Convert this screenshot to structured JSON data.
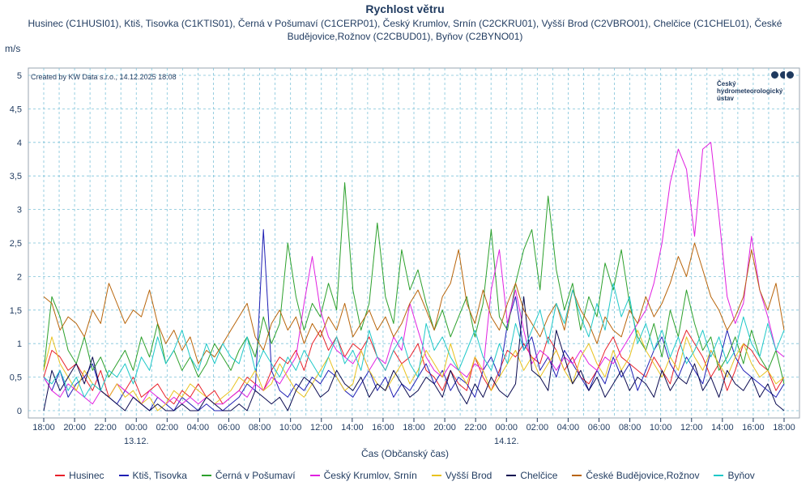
{
  "chart_data": {
    "type": "line",
    "title": "Rychlost větru",
    "subtitle": "Husinec (C1HUSI01), Ktiš, Tisovka (C1KTIS01), Černá v Pošumaví (C1CERP01), Český Krumlov, Srnín (C2CKRU01), Vyšší Brod (C2VBRO01), Chelčice (C1CHEL01), České Budějovice,Rožnov (C2CBUD01), Byňov (C2BYNO01)",
    "ylabel": "m/s",
    "xlabel": "Čas (Občanský čas)",
    "ylim": [
      0,
      5
    ],
    "yticks": [
      "0",
      "0,5",
      "1",
      "1,5",
      "2",
      "2,5",
      "3",
      "3,5",
      "4",
      "4,5",
      "5"
    ],
    "xticks": [
      "18:00",
      "20:00",
      "22:00",
      "00:00",
      "02:00",
      "04:00",
      "06:00",
      "08:00",
      "10:00",
      "12:00",
      "14:00",
      "16:00",
      "18:00",
      "20:00",
      "22:00",
      "00:00",
      "02:00",
      "04:00",
      "06:00",
      "08:00",
      "10:00",
      "12:00",
      "14:00",
      "16:00",
      "18:00"
    ],
    "date_labels": [
      {
        "tick": "00:00",
        "text": "13.12."
      },
      {
        "tick": "00:00",
        "second": true,
        "text": "14.12."
      }
    ],
    "grid": true,
    "legend_position": "bottom",
    "credit": "Created by KW Data s.r.o., 14.12.2025 18:08",
    "series": [
      {
        "name": "Husinec",
        "color": "#e8202a",
        "values": [
          0.5,
          0.9,
          0.8,
          0.6,
          0.7,
          0.5,
          0.3,
          0.6,
          0.2,
          0.4,
          0.3,
          0.5,
          0.2,
          0.3,
          0.4,
          0.2,
          0.1,
          0.3,
          0.2,
          0.4,
          0.2,
          0.3,
          0.1,
          0.2,
          0.3,
          0.5,
          0.4,
          0.3,
          0.6,
          0.8,
          0.7,
          0.9,
          0.6,
          1.0,
          1.2,
          0.9,
          1.1,
          0.8,
          1.0,
          0.9,
          1.1,
          0.8,
          0.6,
          0.9,
          0.7,
          0.8,
          1.0,
          0.6,
          0.5,
          0.3,
          0.6,
          0.4,
          0.3,
          0.8,
          0.5,
          0.3,
          0.6,
          0.9,
          0.8,
          1.0,
          0.8,
          0.7,
          1.1,
          0.9,
          0.6,
          0.8,
          0.5,
          0.4,
          0.6,
          0.9,
          1.1,
          0.8,
          0.7,
          0.6,
          0.5,
          0.8,
          0.6,
          0.4,
          0.9,
          1.2,
          1.0,
          0.8,
          0.5,
          0.7,
          0.3,
          0.6,
          1.0,
          0.9,
          0.7,
          0.6,
          0.3,
          0.5
        ]
      },
      {
        "name": "Ktiš, Tisovka",
        "color": "#1f1fb4",
        "values": [
          0.5,
          0.3,
          0.6,
          0.2,
          0.4,
          0.5,
          0.7,
          0.3,
          0.2,
          0.1,
          0.3,
          0.2,
          0.1,
          0.0,
          0.2,
          0.1,
          0.0,
          0.2,
          0.1,
          0.0,
          0.1,
          0.0,
          0.0,
          0.1,
          0.2,
          0.4,
          0.3,
          2.7,
          0.6,
          0.3,
          0.2,
          0.4,
          0.3,
          0.5,
          0.4,
          0.6,
          0.5,
          0.3,
          0.2,
          0.4,
          0.6,
          0.3,
          0.5,
          0.2,
          0.4,
          0.3,
          0.5,
          0.7,
          0.4,
          0.6,
          0.3,
          0.5,
          0.4,
          0.2,
          0.6,
          0.8,
          0.5,
          1.3,
          1.7,
          0.9,
          1.1,
          0.6,
          0.8,
          0.5,
          0.9,
          0.7,
          0.5,
          0.3,
          0.6,
          0.4,
          0.8,
          0.5,
          0.7,
          0.3,
          0.6,
          0.9,
          1.1,
          0.7,
          0.5,
          0.8,
          0.6,
          0.4,
          0.9,
          0.7,
          1.2,
          0.8,
          0.6,
          0.5,
          0.4,
          0.3,
          0.2,
          0.4
        ]
      },
      {
        "name": "Černá v Pošumaví",
        "color": "#2ca02c",
        "values": [
          0.6,
          1.7,
          1.4,
          0.9,
          0.7,
          1.1,
          0.6,
          0.8,
          0.5,
          0.7,
          0.9,
          0.6,
          1.1,
          0.8,
          1.3,
          0.7,
          0.9,
          0.6,
          0.8,
          0.5,
          0.7,
          1.0,
          0.8,
          0.6,
          0.9,
          1.1,
          0.8,
          1.4,
          1.0,
          1.3,
          2.5,
          1.7,
          1.2,
          1.6,
          1.4,
          1.9,
          1.5,
          3.4,
          1.8,
          1.2,
          1.6,
          2.8,
          1.7,
          1.3,
          2.4,
          1.8,
          2.1,
          1.6,
          1.2,
          1.5,
          1.1,
          1.4,
          1.7,
          1.1,
          1.6,
          2.7,
          1.4,
          1.2,
          1.9,
          2.4,
          2.7,
          1.8,
          3.2,
          2.1,
          1.5,
          1.9,
          1.2,
          1.7,
          1.4,
          2.2,
          1.8,
          2.4,
          1.6,
          1.1,
          0.9,
          1.3,
          0.8,
          1.5,
          1.1,
          1.8,
          1.3,
          0.9,
          1.1,
          0.6,
          0.8,
          1.1,
          0.7,
          1.2,
          0.8,
          0.6,
          0.9,
          0.4
        ]
      },
      {
        "name": "Český Krumlov, Srnín",
        "color": "#e020e0",
        "values": [
          0.5,
          0.3,
          0.2,
          0.4,
          0.3,
          0.2,
          0.1,
          0.3,
          0.2,
          0.4,
          0.3,
          0.2,
          0.1,
          0.3,
          0.2,
          0.1,
          0.2,
          0.1,
          0.2,
          0.1,
          0.2,
          0.1,
          0.1,
          0.2,
          0.3,
          0.2,
          0.4,
          0.3,
          0.5,
          0.4,
          0.6,
          0.8,
          1.6,
          2.3,
          1.5,
          1.1,
          0.9,
          0.8,
          0.7,
          0.9,
          0.6,
          0.8,
          0.7,
          1.1,
          0.9,
          1.6,
          1.2,
          0.8,
          0.6,
          0.5,
          0.7,
          0.6,
          0.5,
          0.7,
          0.6,
          1.8,
          2.4,
          1.3,
          1.8,
          1.2,
          0.7,
          0.9,
          0.8,
          0.6,
          0.8,
          0.7,
          0.9,
          0.7,
          0.6,
          0.8,
          0.7,
          0.9,
          1.1,
          1.3,
          1.5,
          1.9,
          2.5,
          3.4,
          3.9,
          3.6,
          2.6,
          3.9,
          4.0,
          2.9,
          1.7,
          1.3,
          1.6,
          2.6,
          1.8,
          1.4,
          0.9,
          0.8
        ]
      },
      {
        "name": "Vyšší Brod",
        "color": "#e8c21e",
        "values": [
          0.6,
          1.1,
          0.7,
          0.5,
          0.3,
          0.6,
          0.4,
          0.3,
          0.2,
          0.4,
          0.2,
          0.3,
          0.1,
          0.2,
          0.0,
          0.1,
          0.3,
          0.2,
          0.4,
          0.3,
          0.2,
          0.1,
          0.2,
          0.3,
          0.5,
          0.4,
          0.6,
          0.3,
          0.4,
          0.7,
          0.5,
          0.3,
          0.2,
          0.4,
          0.6,
          0.8,
          0.5,
          0.3,
          0.4,
          0.9,
          0.6,
          0.4,
          0.3,
          0.5,
          0.7,
          0.4,
          0.6,
          0.9,
          0.7,
          0.5,
          1.0,
          0.6,
          0.4,
          0.8,
          0.6,
          0.3,
          0.5,
          0.7,
          0.9,
          0.6,
          0.8,
          0.5,
          0.7,
          0.9,
          0.6,
          0.4,
          0.8,
          1.0,
          0.7,
          0.5,
          0.9,
          0.6,
          0.8,
          1.2,
          0.9,
          0.7,
          0.5,
          0.8,
          0.6,
          1.1,
          0.8,
          0.6,
          0.9,
          0.7,
          0.5,
          0.8,
          1.0,
          0.7,
          0.5,
          0.6,
          0.4,
          0.5
        ]
      },
      {
        "name": "Chelčice",
        "color": "#0a0a50",
        "values": [
          0.0,
          0.6,
          0.3,
          0.5,
          0.7,
          0.4,
          0.8,
          0.3,
          0.2,
          0.1,
          0.0,
          0.2,
          0.1,
          0.0,
          0.1,
          0.0,
          0.0,
          0.1,
          0.0,
          0.0,
          0.2,
          0.1,
          0.0,
          0.0,
          0.1,
          0.0,
          0.3,
          0.2,
          0.1,
          0.2,
          0.0,
          0.3,
          0.5,
          0.4,
          0.2,
          0.3,
          0.6,
          0.4,
          0.3,
          0.5,
          0.2,
          0.4,
          0.3,
          0.6,
          0.4,
          0.2,
          0.3,
          0.5,
          0.4,
          0.2,
          0.6,
          0.3,
          0.1,
          0.4,
          0.2,
          0.5,
          0.3,
          0.2,
          0.4,
          1.7,
          0.6,
          0.5,
          0.3,
          1.2,
          0.8,
          0.4,
          0.6,
          0.3,
          0.5,
          0.2,
          0.4,
          0.6,
          0.3,
          0.5,
          0.4,
          0.2,
          0.6,
          0.3,
          0.5,
          0.4,
          0.7,
          0.3,
          0.5,
          0.2,
          0.6,
          0.4,
          0.3,
          0.5,
          0.2,
          0.4,
          0.1,
          0.0
        ]
      },
      {
        "name": "České Budějovice,Rožnov",
        "color": "#b8640a",
        "values": [
          1.7,
          1.6,
          1.2,
          1.4,
          1.3,
          1.1,
          1.5,
          1.3,
          1.9,
          1.6,
          1.3,
          1.5,
          1.4,
          1.8,
          1.3,
          1.0,
          1.2,
          0.9,
          1.1,
          0.7,
          0.9,
          0.8,
          1.0,
          1.2,
          1.4,
          1.6,
          1.1,
          0.9,
          1.3,
          1.5,
          1.2,
          1.4,
          1.0,
          1.3,
          1.1,
          1.4,
          1.2,
          1.6,
          1.1,
          1.3,
          1.5,
          1.2,
          1.4,
          1.1,
          1.3,
          1.6,
          1.8,
          1.5,
          1.2,
          1.7,
          1.9,
          2.4,
          1.6,
          1.3,
          1.8,
          1.4,
          1.2,
          1.6,
          1.9,
          1.5,
          1.3,
          1.1,
          1.4,
          1.6,
          1.2,
          1.8,
          1.5,
          1.3,
          1.0,
          1.4,
          1.2,
          1.1,
          1.5,
          1.3,
          1.7,
          1.4,
          1.6,
          1.9,
          2.3,
          2.0,
          2.5,
          2.1,
          1.7,
          1.5,
          1.2,
          1.4,
          1.7,
          2.4,
          1.8,
          1.5,
          1.9,
          1.2
        ]
      },
      {
        "name": "Byňov",
        "color": "#1ec8c8",
        "values": [
          0.5,
          0.4,
          0.6,
          0.3,
          0.5,
          0.2,
          0.4,
          0.3,
          0.6,
          0.5,
          0.7,
          0.4,
          0.8,
          0.6,
          1.1,
          0.7,
          0.9,
          1.2,
          0.8,
          0.6,
          1.0,
          0.7,
          1.0,
          0.8,
          0.7,
          1.1,
          0.6,
          0.9,
          0.7,
          0.5,
          0.8,
          0.6,
          0.9,
          0.7,
          0.5,
          0.8,
          1.1,
          0.7,
          0.9,
          0.6,
          1.2,
          0.8,
          0.6,
          0.9,
          1.1,
          0.7,
          0.5,
          1.3,
          0.9,
          1.1,
          0.8,
          0.6,
          0.9,
          1.2,
          0.8,
          0.6,
          1.0,
          0.7,
          1.3,
          0.9,
          1.2,
          1.5,
          1.0,
          1.6,
          1.3,
          1.8,
          1.4,
          1.1,
          1.6,
          1.2,
          1.9,
          1.4,
          1.7,
          1.0,
          1.3,
          0.9,
          1.2,
          0.8,
          1.1,
          0.7,
          0.9,
          1.2,
          0.8,
          1.1,
          0.7,
          0.9,
          1.4,
          1.0,
          0.8,
          1.3,
          0.9,
          1.2
        ]
      }
    ]
  },
  "logo": {
    "line1": "Český",
    "line2": "hydrometeorologický",
    "line3": "ústav"
  }
}
